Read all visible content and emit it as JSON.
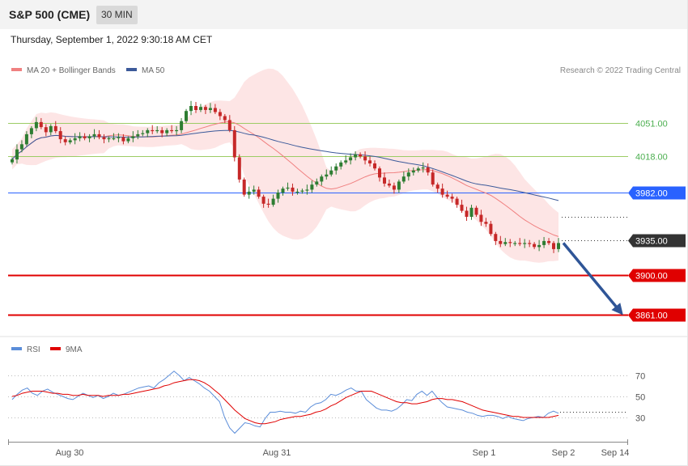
{
  "header": {
    "title": "S&P 500 (CME)",
    "timeframe": "30 MIN"
  },
  "date_text": "Thursday, September 1, 2022 9:30:18 AM CET",
  "legend": {
    "ma20": "MA 20 + Bollinger Bands",
    "ma50": "MA 50",
    "rsi": "RSI",
    "rsi_ma": "9MA"
  },
  "credit": "Research © 2022 Trading Central",
  "colors": {
    "bull": "#2e7d32",
    "bear": "#c62828",
    "ma20": "#f08080",
    "ma50": "#3c5a9a",
    "band": "#fde0e0",
    "support": "#e00000",
    "pivot": "#2962ff",
    "resistance": "#9ccc65",
    "current": "#333333",
    "rsi": "#5b8dd9",
    "rsi_ma": "#e00000",
    "arrow": "#2f5597"
  },
  "chart_data": [
    {
      "type": "candlestick",
      "title": "S&P 500 (CME)",
      "ylim": [
        3840,
        4125
      ],
      "x_ticks": [
        "Aug 30",
        "Aug 31",
        "Sep 1",
        "Sep 2",
        "Sep 14"
      ],
      "levels": [
        {
          "label": "4051.00",
          "value": 4051,
          "kind": "resistance"
        },
        {
          "label": "4018.00",
          "value": 4018,
          "kind": "resistance"
        },
        {
          "label": "3982.00",
          "value": 3982,
          "kind": "pivot"
        },
        {
          "label": "3935.00",
          "value": 3935,
          "kind": "current"
        },
        {
          "label": "3900.00",
          "value": 3900,
          "kind": "support"
        },
        {
          "label": "3861.00",
          "value": 3861,
          "kind": "support"
        }
      ],
      "close": [
        4015,
        4025,
        4030,
        4040,
        4046,
        4052,
        4047,
        4042,
        4048,
        4043,
        4035,
        4032,
        4034,
        4036,
        4038,
        4036,
        4038,
        4040,
        4037,
        4035,
        4036,
        4036,
        4037,
        4033,
        4036,
        4038,
        4040,
        4041,
        4044,
        4043,
        4044,
        4041,
        4044,
        4043,
        4044,
        4053,
        4063,
        4068,
        4064,
        4067,
        4064,
        4066,
        4062,
        4058,
        4054,
        4044,
        4017,
        3995,
        3980,
        3983,
        3985,
        3978,
        3971,
        3970,
        3976,
        3982,
        3986,
        3987,
        3983,
        3983,
        3984,
        3985,
        3990,
        3993,
        3998,
        4000,
        4004,
        4008,
        4012,
        4014,
        4017,
        4020,
        4018,
        4014,
        4011,
        4006,
        3997,
        3991,
        3989,
        3985,
        3993,
        3998,
        4002,
        4004,
        4006,
        4007,
        4002,
        3990,
        3986,
        3980,
        3978,
        3976,
        3970,
        3964,
        3958,
        3967,
        3960,
        3953,
        3951,
        3941,
        3934,
        3931,
        3933,
        3932,
        3932,
        3931,
        3932,
        3931,
        3928,
        3930,
        3934,
        3932,
        3926,
        3932
      ]
    },
    {
      "type": "line",
      "title": "RSI",
      "ylim": [
        0,
        100
      ],
      "y_ticks": [
        70,
        50,
        30
      ],
      "series": [
        {
          "name": "RSI",
          "values": [
            47,
            52,
            56,
            58,
            53,
            51,
            55,
            57,
            54,
            52,
            50,
            48,
            47,
            50,
            53,
            51,
            49,
            51,
            48,
            50,
            53,
            51,
            52,
            54,
            56,
            58,
            59,
            60,
            58,
            63,
            66,
            70,
            74,
            70,
            65,
            68,
            65,
            62,
            58,
            55,
            50,
            45,
            30,
            20,
            15,
            20,
            25,
            24,
            22,
            21,
            29,
            35,
            35,
            36,
            35,
            35,
            34,
            36,
            35,
            40,
            43,
            44,
            47,
            52,
            51,
            53,
            56,
            58,
            55,
            55,
            47,
            43,
            39,
            37,
            37,
            36,
            38,
            42,
            47,
            46,
            52,
            55,
            51,
            55,
            49,
            44,
            40,
            39,
            38,
            37,
            35,
            34,
            32,
            31,
            32,
            32,
            31,
            29,
            31,
            29,
            28,
            27,
            29,
            30,
            31,
            30,
            34,
            36,
            34
          ]
        },
        {
          "name": "9MA",
          "values": [
            50,
            51,
            53,
            54,
            55,
            55,
            55,
            54,
            53,
            53,
            52,
            52,
            51,
            51,
            52,
            51,
            51,
            51,
            50,
            51,
            51,
            51,
            52,
            52,
            53,
            54,
            55,
            56,
            57,
            58,
            60,
            61,
            63,
            64,
            65,
            66,
            66,
            65,
            63,
            60,
            56,
            52,
            47,
            42,
            37,
            33,
            29,
            27,
            25,
            24,
            24,
            25,
            26,
            28,
            29,
            30,
            31,
            31,
            32,
            33,
            35,
            36,
            38,
            41,
            43,
            46,
            49,
            51,
            53,
            55,
            55,
            55,
            53,
            51,
            49,
            47,
            45,
            44,
            44,
            43,
            43,
            44,
            45,
            47,
            48,
            48,
            47,
            47,
            46,
            45,
            43,
            41,
            39,
            37,
            36,
            35,
            34,
            33,
            32,
            31,
            31,
            30,
            30,
            30,
            30,
            30,
            30,
            31,
            32
          ]
        }
      ]
    }
  ]
}
